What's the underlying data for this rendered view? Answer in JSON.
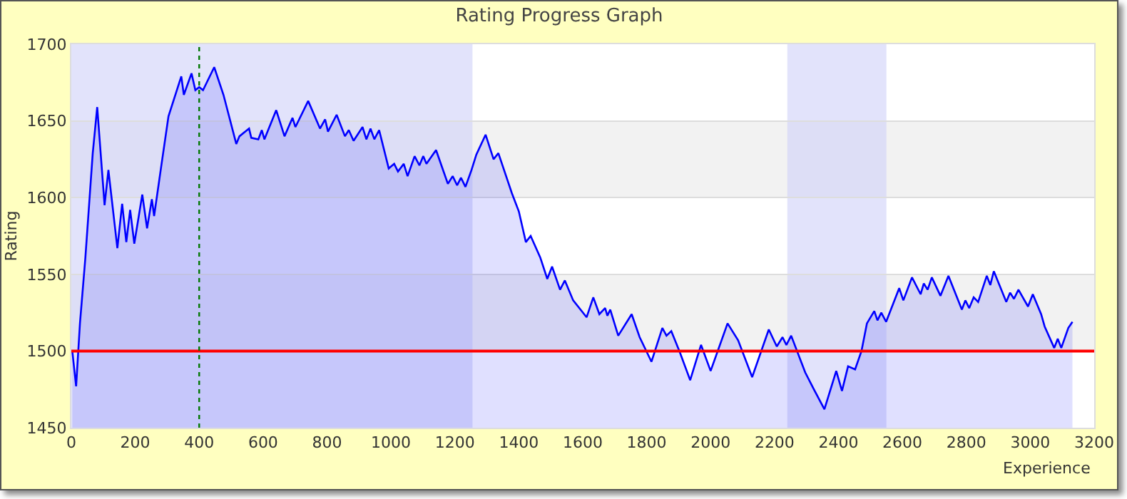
{
  "chart_data": {
    "type": "area",
    "title": "Rating Progress Graph",
    "xlabel": "Experience",
    "ylabel": "Rating",
    "xlim": [
      0,
      3200
    ],
    "xticks": [
      0,
      200,
      400,
      600,
      800,
      1000,
      1200,
      1400,
      1600,
      1800,
      2000,
      2200,
      2400,
      2600,
      2800,
      3000,
      3200
    ],
    "ylim": [
      1450,
      1700
    ],
    "yticks": [
      1450,
      1500,
      1550,
      1600,
      1650,
      1700
    ],
    "grid": "y",
    "series": [
      {
        "color": "#0000ff",
        "x": [
          3,
          15,
          27,
          44,
          67,
          81,
          104,
          116,
          144,
          159,
          172,
          184,
          197,
          222,
          237,
          252,
          259,
          281,
          304,
          344,
          352,
          376,
          388,
          400,
          412,
          447,
          476,
          516,
          526,
          556,
          563,
          585,
          596,
          604,
          641,
          667,
          692,
          701,
          741,
          778,
          794,
          803,
          830,
          856,
          868,
          883,
          911,
          923,
          936,
          948,
          963,
          993,
          1010,
          1022,
          1040,
          1052,
          1074,
          1089,
          1101,
          1111,
          1141,
          1178,
          1193,
          1207,
          1219,
          1233,
          1252,
          1267,
          1296,
          1321,
          1336,
          1378,
          1400,
          1422,
          1437,
          1467,
          1489,
          1504,
          1529,
          1544,
          1570,
          1612,
          1633,
          1652,
          1670,
          1677,
          1686,
          1711,
          1753,
          1778,
          1815,
          1849,
          1862,
          1877,
          1904,
          1936,
          1970,
          2000,
          2053,
          2086,
          2130,
          2182,
          2207,
          2225,
          2237,
          2252,
          2296,
          2323,
          2356,
          2393,
          2411,
          2430,
          2452,
          2472,
          2489,
          2512,
          2522,
          2534,
          2549,
          2590,
          2603,
          2630,
          2657,
          2667,
          2679,
          2692,
          2719,
          2744,
          2786,
          2797,
          2809,
          2823,
          2837,
          2864,
          2875,
          2886,
          2925,
          2937,
          2949,
          2963,
          2993,
          3008,
          3034,
          3045,
          3075,
          3086,
          3097,
          3119,
          3132
        ],
        "values": [
          1500,
          1477,
          1518,
          1561,
          1629,
          1659,
          1595,
          1618,
          1567,
          1596,
          1571,
          1592,
          1570,
          1602,
          1580,
          1599,
          1588,
          1620,
          1653,
          1679,
          1667,
          1681,
          1670,
          1672,
          1670,
          1685,
          1667,
          1635,
          1640,
          1645,
          1639,
          1638,
          1644,
          1638,
          1657,
          1640,
          1652,
          1646,
          1663,
          1645,
          1651,
          1643,
          1654,
          1640,
          1644,
          1637,
          1646,
          1638,
          1645,
          1638,
          1644,
          1619,
          1622,
          1617,
          1622,
          1614,
          1627,
          1621,
          1627,
          1622,
          1631,
          1609,
          1614,
          1608,
          1613,
          1607,
          1618,
          1628,
          1641,
          1625,
          1629,
          1603,
          1591,
          1571,
          1575,
          1561,
          1547,
          1555,
          1540,
          1546,
          1533,
          1522,
          1535,
          1524,
          1528,
          1523,
          1527,
          1510,
          1524,
          1509,
          1493,
          1515,
          1510,
          1513,
          1499,
          1481,
          1504,
          1487,
          1518,
          1507,
          1483,
          1514,
          1503,
          1509,
          1504,
          1510,
          1486,
          1475,
          1462,
          1487,
          1474,
          1490,
          1488,
          1500,
          1518,
          1526,
          1520,
          1525,
          1519,
          1541,
          1533,
          1548,
          1537,
          1544,
          1540,
          1548,
          1536,
          1549,
          1527,
          1533,
          1528,
          1535,
          1532,
          1549,
          1543,
          1552,
          1532,
          1538,
          1534,
          1540,
          1529,
          1537,
          1524,
          1516,
          1502,
          1508,
          1502,
          1515,
          1519
        ]
      }
    ],
    "bands": [
      {
        "axis": "y",
        "from": 1600,
        "to": 1650,
        "color": "#f2f2f2"
      },
      {
        "axis": "y",
        "from": 1500,
        "to": 1550,
        "color": "#f2f2f2"
      },
      {
        "axis": "x",
        "from": 0,
        "to": 1255,
        "color": "#cfd0f8"
      },
      {
        "axis": "x",
        "from": 2240,
        "to": 2550,
        "color": "#cfd0f8"
      }
    ],
    "ref_lines": [
      {
        "axis": "y",
        "value": 1500,
        "color": "#ff0000",
        "line_style": "solid"
      },
      {
        "axis": "x",
        "value": 400,
        "color": "#007700",
        "line_style": "dotted"
      }
    ]
  }
}
